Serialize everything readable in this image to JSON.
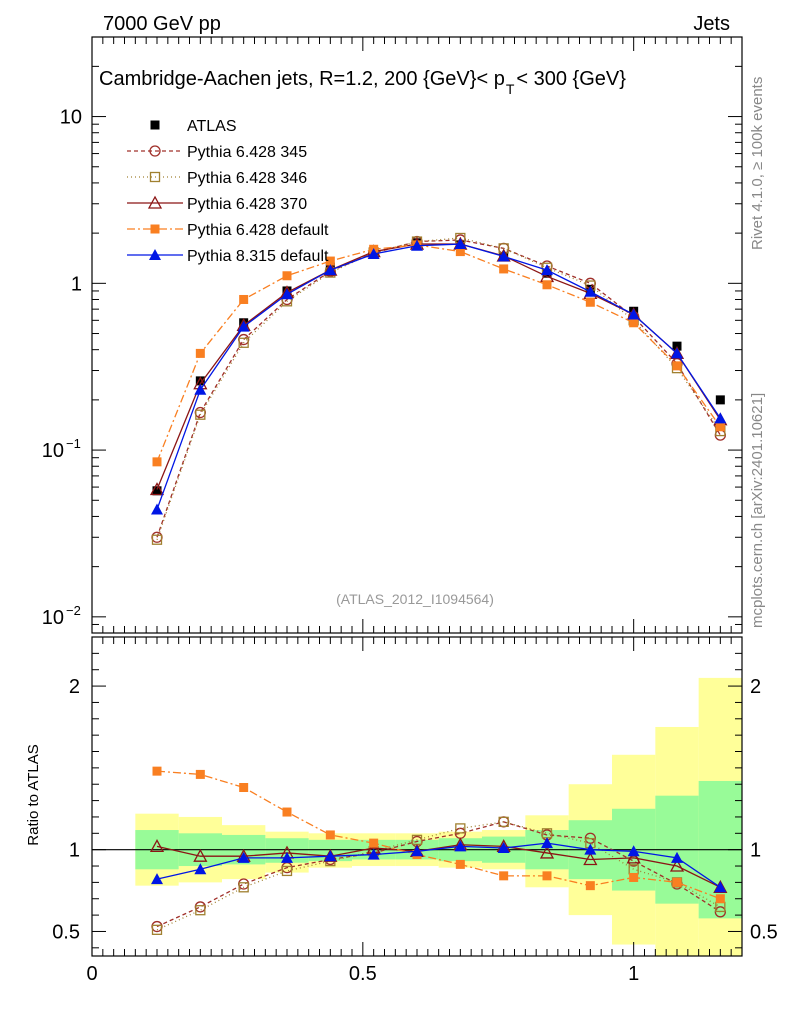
{
  "header": {
    "left": "7000 GeV pp",
    "right": "Jets",
    "title": "Cambridge-Aachen jets, R=1.2,  200 {GeV}< p",
    "title_sub": "T",
    "title_end": " < 300 {GeV}",
    "watermark": "(ATLAS_2012_I1094564)",
    "side_rivet": "Rivet 4.1.0, ≥ 100k events",
    "side_mcplots": "mcplots.cern.ch [arXiv:2401.10621]"
  },
  "colors": {
    "atlas": "#000000",
    "p345": "#a0302a",
    "p346": "#a08030",
    "p370": "#8b1515",
    "p6def": "#f97f21",
    "p8def": "#0016e5",
    "band_green": "#98fb98",
    "band_yellow": "#ffff99"
  },
  "chart_data": [
    {
      "type": "line",
      "panel": "main",
      "yscale": "log",
      "xlim": [
        0,
        1.2
      ],
      "ylim": [
        0.008,
        30
      ],
      "yticks": [
        {
          "value": 0.01,
          "base": "10",
          "exp": "−2"
        },
        {
          "value": 0.1,
          "base": "10",
          "exp": "−1"
        },
        {
          "value": 1,
          "base": "1",
          "exp": ""
        },
        {
          "value": 10,
          "base": "10",
          "exp": ""
        }
      ],
      "x": [
        0.12,
        0.2,
        0.28,
        0.36,
        0.44,
        0.52,
        0.6,
        0.68,
        0.76,
        0.84,
        0.92,
        1.0,
        1.08,
        1.16
      ],
      "series": [
        {
          "name": "ATLAS",
          "key": "atlas",
          "values": [
            0.057,
            0.26,
            0.58,
            0.9,
            1.25,
            1.55,
            1.75,
            1.7,
            1.45,
            1.15,
            0.92,
            0.68,
            0.42,
            0.2
          ]
        },
        {
          "name": "Pythia 6.428 345",
          "key": "p345",
          "values": [
            0.03,
            0.168,
            0.46,
            0.8,
            1.18,
            1.52,
            1.78,
            1.82,
            1.62,
            1.27,
            1.0,
            0.63,
            0.33,
            0.123
          ]
        },
        {
          "name": "Pythia 6.428 346",
          "key": "p346",
          "values": [
            0.029,
            0.163,
            0.44,
            0.78,
            1.16,
            1.53,
            1.78,
            1.87,
            1.62,
            1.24,
            0.97,
            0.6,
            0.31,
            0.13
          ]
        },
        {
          "name": "Pythia 6.428 370",
          "key": "p370",
          "values": [
            0.058,
            0.25,
            0.56,
            0.88,
            1.2,
            1.55,
            1.72,
            1.72,
            1.46,
            1.1,
            0.87,
            0.65,
            0.38,
            0.152
          ]
        },
        {
          "name": "Pythia 6.428 default",
          "key": "p6def",
          "values": [
            0.085,
            0.38,
            0.8,
            1.11,
            1.36,
            1.6,
            1.7,
            1.55,
            1.22,
            0.98,
            0.77,
            0.58,
            0.32,
            0.138
          ]
        },
        {
          "name": "Pythia 8.315 default",
          "key": "p8def",
          "values": [
            0.044,
            0.23,
            0.55,
            0.86,
            1.2,
            1.5,
            1.68,
            1.72,
            1.45,
            1.2,
            0.89,
            0.65,
            0.38,
            0.155
          ]
        }
      ]
    },
    {
      "type": "line",
      "panel": "ratio",
      "ylabel": "Ratio to ATLAS",
      "xlim": [
        0,
        1.2
      ],
      "ylim": [
        0.35,
        2.3
      ],
      "yticks": [
        {
          "value": 0.5,
          "label": "0.5"
        },
        {
          "value": 1,
          "label": "1"
        },
        {
          "value": 2,
          "label": "2"
        }
      ],
      "xticks": [
        {
          "value": 0,
          "label": "0"
        },
        {
          "value": 0.5,
          "label": "0.5"
        },
        {
          "value": 1,
          "label": "1"
        }
      ],
      "x": [
        0.12,
        0.2,
        0.28,
        0.36,
        0.44,
        0.52,
        0.6,
        0.68,
        0.76,
        0.84,
        0.92,
        1.0,
        1.08,
        1.16
      ],
      "bands": {
        "edges": [
          0.08,
          0.16,
          0.24,
          0.32,
          0.4,
          0.48,
          0.56,
          0.64,
          0.72,
          0.8,
          0.88,
          0.96,
          1.04,
          1.12,
          1.2
        ],
        "green_lo": [
          0.88,
          0.9,
          0.91,
          0.92,
          0.93,
          0.94,
          0.94,
          0.93,
          0.92,
          0.88,
          0.82,
          0.75,
          0.67,
          0.58
        ],
        "green_hi": [
          1.12,
          1.1,
          1.09,
          1.07,
          1.06,
          1.06,
          1.06,
          1.07,
          1.08,
          1.12,
          1.18,
          1.25,
          1.33,
          1.42
        ],
        "yellow_lo": [
          0.78,
          0.8,
          0.82,
          0.86,
          0.89,
          0.9,
          0.9,
          0.89,
          0.88,
          0.77,
          0.6,
          0.42,
          0.35,
          0.35
        ],
        "yellow_hi": [
          1.22,
          1.2,
          1.15,
          1.11,
          1.1,
          1.1,
          1.1,
          1.11,
          1.12,
          1.21,
          1.4,
          1.58,
          1.75,
          2.05
        ]
      },
      "series": [
        {
          "name": "Pythia 6.428 345",
          "key": "p345",
          "values": [
            0.53,
            0.65,
            0.79,
            0.89,
            0.94,
            0.98,
            1.05,
            1.1,
            1.17,
            1.09,
            1.07,
            0.93,
            0.79,
            0.62
          ]
        },
        {
          "name": "Pythia 6.428 346",
          "key": "p346",
          "values": [
            0.51,
            0.63,
            0.77,
            0.87,
            0.93,
            0.99,
            1.06,
            1.13,
            1.17,
            1.1,
            1.04,
            0.88,
            0.8,
            0.65
          ]
        },
        {
          "name": "Pythia 6.428 370",
          "key": "p370",
          "values": [
            1.02,
            0.96,
            0.96,
            0.98,
            0.96,
            1.01,
            0.99,
            1.03,
            1.02,
            0.98,
            0.94,
            0.95,
            0.9,
            0.77
          ]
        },
        {
          "name": "Pythia 6.428 default",
          "key": "p6def",
          "values": [
            1.48,
            1.46,
            1.38,
            1.23,
            1.09,
            1.04,
            0.97,
            0.91,
            0.84,
            0.84,
            0.78,
            0.83,
            0.8,
            0.7
          ]
        },
        {
          "name": "Pythia 8.315 default",
          "key": "p8def",
          "values": [
            0.82,
            0.88,
            0.95,
            0.95,
            0.96,
            0.97,
            0.99,
            1.02,
            1.01,
            1.04,
            1.0,
            0.99,
            0.95,
            0.77
          ]
        }
      ]
    }
  ]
}
